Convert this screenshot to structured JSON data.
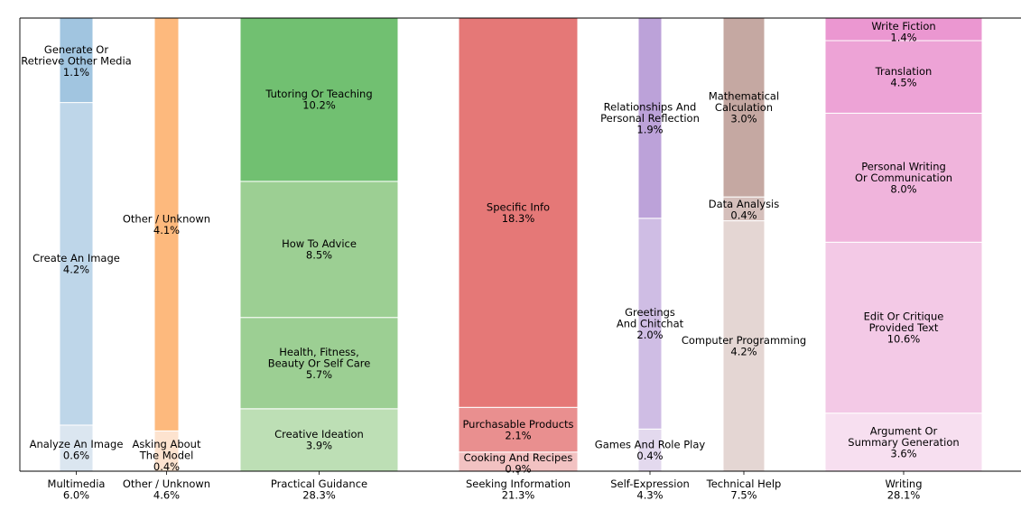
{
  "chart_data": {
    "type": "bar",
    "title": "",
    "xlabel": "",
    "ylabel": "",
    "categories": [
      {
        "name": "Multimedia",
        "total": "6.0%",
        "base_color": "#1f77b4",
        "segments": [
          {
            "label": "Analyze An Image",
            "value": 0.6,
            "display": "0.6%",
            "shade": "#dbe6f0"
          },
          {
            "label": "Create An Image",
            "value": 4.2,
            "display": "4.2%",
            "shade": "#bed6e9"
          },
          {
            "label": "Generate Or Retrieve Other Media",
            "value": 1.1,
            "display": "1.1%",
            "shade": "#a1c5e0"
          }
        ]
      },
      {
        "name": "Other / Unknown",
        "total": "4.6%",
        "base_color": "#ff7f0e",
        "segments": [
          {
            "label": "Asking About The Model",
            "value": 0.4,
            "display": "0.4%",
            "shade": "#fde3cf"
          },
          {
            "label": "Other / Unknown",
            "value": 4.1,
            "display": "4.1%",
            "shade": "#fdb97d"
          }
        ]
      },
      {
        "name": "Practical Guidance",
        "total": "28.3%",
        "base_color": "#2ca02c",
        "segments": [
          {
            "label": "Creative Ideation",
            "value": 3.9,
            "display": "3.9%",
            "shade": "#bddfb5"
          },
          {
            "label": "Health, Fitness, Beauty Or Self Care",
            "value": 5.7,
            "display": "5.7%",
            "shade": "#9ccf93"
          },
          {
            "label": "How To Advice",
            "value": 8.5,
            "display": "8.5%",
            "shade": "#9ccf93"
          },
          {
            "label": "Tutoring Or Teaching",
            "value": 10.2,
            "display": "10.2%",
            "shade": "#71c071"
          }
        ]
      },
      {
        "name": "Seeking Information",
        "total": "21.3%",
        "base_color": "#d62728",
        "segments": [
          {
            "label": "Cooking And Recipes",
            "value": 0.9,
            "display": "0.9%",
            "shade": "#f2c2c2"
          },
          {
            "label": "Purchasable Products",
            "value": 2.1,
            "display": "2.1%",
            "shade": "#e98f8f"
          },
          {
            "label": "Specific Info",
            "value": 18.3,
            "display": "18.3%",
            "shade": "#e57877"
          }
        ]
      },
      {
        "name": "Self-Expression",
        "total": "4.3%",
        "base_color": "#9467bd",
        "segments": [
          {
            "label": "Games And Role Play",
            "value": 0.4,
            "display": "0.4%",
            "shade": "#e3d9ee"
          },
          {
            "label": "Greetings And Chitchat",
            "value": 2.0,
            "display": "2.0%",
            "shade": "#cfbde4"
          },
          {
            "label": "Relationships And Personal Reflection",
            "value": 1.9,
            "display": "1.9%",
            "shade": "#bca2d9"
          }
        ]
      },
      {
        "name": "Technical Help",
        "total": "7.5%",
        "base_color": "#8c564b",
        "segments": [
          {
            "label": "Computer Programming",
            "value": 4.2,
            "display": "4.2%",
            "shade": "#e4d6d3"
          },
          {
            "label": "Data Analysis",
            "value": 0.4,
            "display": "0.4%",
            "shade": "#d5bfbb"
          },
          {
            "label": "Mathematical Calculation",
            "value": 3.0,
            "display": "3.0%",
            "shade": "#c5a8a2"
          }
        ]
      },
      {
        "name": "Writing",
        "total": "28.1%",
        "base_color": "#e377c2",
        "segments": [
          {
            "label": "Argument Or Summary Generation",
            "value": 3.6,
            "display": "3.6%",
            "shade": "#f7dff0"
          },
          {
            "label": "Edit Or Critique Provided Text",
            "value": 10.6,
            "display": "10.6%",
            "shade": "#f3c9e6"
          },
          {
            "label": "Personal Writing Or Communication",
            "value": 8.0,
            "display": "8.0%",
            "shade": "#f0b4dc"
          },
          {
            "label": "Translation",
            "value": 4.5,
            "display": "4.5%",
            "shade": "#eda3d6"
          },
          {
            "label": "Write Fiction",
            "value": 1.4,
            "display": "1.4%",
            "shade": "#eb97d1"
          }
        ]
      }
    ]
  }
}
